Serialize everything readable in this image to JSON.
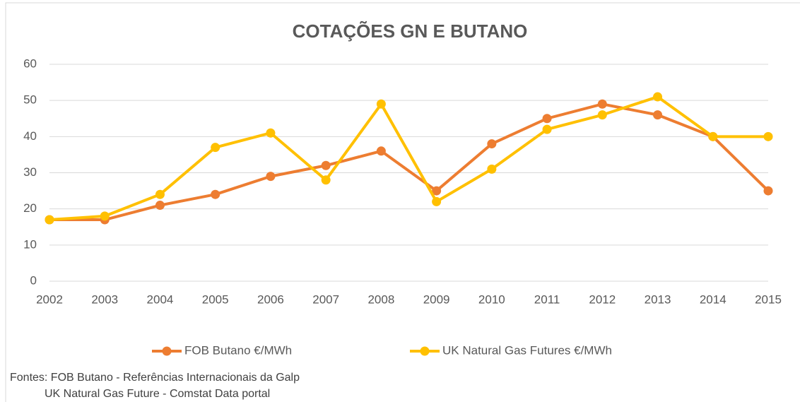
{
  "chart_data": {
    "type": "line",
    "title": "COTAÇÕES GN E BUTANO",
    "categories": [
      "2002",
      "2003",
      "2004",
      "2005",
      "2006",
      "2007",
      "2008",
      "2009",
      "2010",
      "2011",
      "2012",
      "2013",
      "2014",
      "2015"
    ],
    "series": [
      {
        "name": "FOB Butano €/MWh",
        "color": "#ed7d31",
        "values": [
          17,
          17,
          21,
          24,
          29,
          32,
          36,
          25,
          38,
          45,
          49,
          46,
          40,
          25
        ]
      },
      {
        "name": "UK Natural Gas Futures €/MWh",
        "color": "#ffc000",
        "values": [
          17,
          18,
          24,
          37,
          41,
          28,
          49,
          22,
          31,
          42,
          46,
          51,
          40,
          40
        ]
      }
    ],
    "ylim": [
      0,
      60
    ],
    "yticks": [
      0,
      10,
      20,
      30,
      40,
      50,
      60
    ],
    "grid": true,
    "legend": "bottom",
    "notes": [
      "Fontes: FOB Butano - Referências Internacionais da Galp",
      "UK Natural Gas Future - Comstat Data portal"
    ]
  }
}
